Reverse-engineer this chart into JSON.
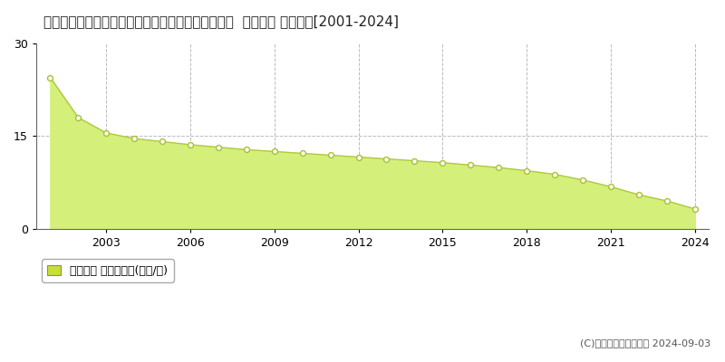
{
  "title": "愛知県知多郡南知多町大字山海字荒布越１２０番２  地価公示 地価推移[2001-2024]",
  "years": [
    2001,
    2002,
    2003,
    2004,
    2005,
    2006,
    2007,
    2008,
    2009,
    2010,
    2011,
    2012,
    2013,
    2014,
    2015,
    2016,
    2017,
    2018,
    2019,
    2020,
    2021,
    2022,
    2023,
    2024
  ],
  "values": [
    24.5,
    18.0,
    15.5,
    14.6,
    14.1,
    13.6,
    13.2,
    12.8,
    12.5,
    12.2,
    11.9,
    11.6,
    11.3,
    11.0,
    10.7,
    10.3,
    9.9,
    9.4,
    8.8,
    7.9,
    6.8,
    5.5,
    4.5,
    3.2
  ],
  "fill_color": "#d4f07a",
  "line_color": "#b0c840",
  "marker_facecolor": "#ffffff",
  "marker_edgecolor": "#a8c030",
  "bg_color": "#ffffff",
  "plot_bg_color": "#ffffff",
  "grid_color": "#bbbbbb",
  "ylim": [
    0,
    30
  ],
  "yticks": [
    0,
    15,
    30
  ],
  "xlim_left": 2000.5,
  "xlim_right": 2024.5,
  "xticks": [
    2003,
    2006,
    2009,
    2012,
    2015,
    2018,
    2021,
    2024
  ],
  "legend_label": "地価公示 平均坪単価(万円/坪)",
  "legend_square_color": "#c8e030",
  "legend_square_edge": "#888888",
  "copyright_text": "(C)土地価格ドットコム 2024-09-03",
  "title_fontsize": 11,
  "tick_fontsize": 9,
  "legend_fontsize": 9,
  "copyright_fontsize": 8
}
